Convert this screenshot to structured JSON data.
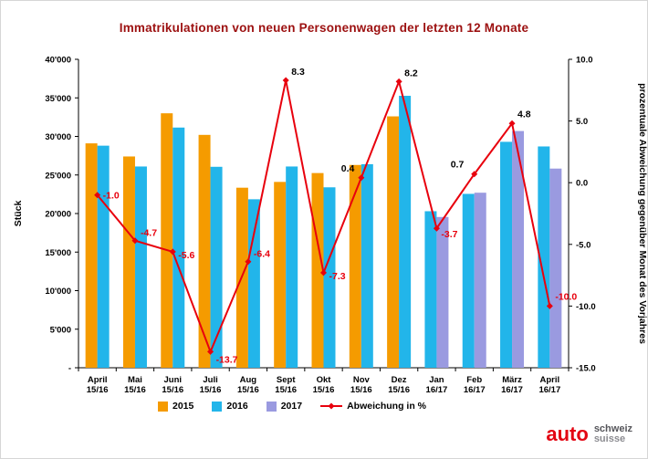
{
  "title": "Immatrikulationen von neuen Personenwagen der letzten 12 Monate",
  "y_left_label": "Stück",
  "y_right_label": "prozentuale Abweichung gegenüber Monat des Vorjahres",
  "legend": [
    "2015",
    "2016",
    "2017",
    "Abweichung in %"
  ],
  "logo": {
    "auto": "auto",
    "schweiz": "schweiz",
    "suisse": "suisse"
  },
  "colors": {
    "2015": "#f59b00",
    "2016": "#22b5ea",
    "2017": "#9a9ae0",
    "line": "#e8000d",
    "title": "#9c1010",
    "label_negative": "#e8000d",
    "label_positive": "#000000"
  },
  "chart_data": {
    "type": "bar+line",
    "categories": [
      {
        "month": "April",
        "year": "15/16"
      },
      {
        "month": "Mai",
        "year": "15/16"
      },
      {
        "month": "Juni",
        "year": "15/16"
      },
      {
        "month": "Juli",
        "year": "15/16"
      },
      {
        "month": "Aug",
        "year": "15/16"
      },
      {
        "month": "Sept",
        "year": "15/16"
      },
      {
        "month": "Okt",
        "year": "15/16"
      },
      {
        "month": "Nov",
        "year": "15/16"
      },
      {
        "month": "Dez",
        "year": "15/16"
      },
      {
        "month": "Jan",
        "year": "16/17"
      },
      {
        "month": "Feb",
        "year": "16/17"
      },
      {
        "month": "März",
        "year": "16/17"
      },
      {
        "month": "April",
        "year": "16/17"
      }
    ],
    "bar_series": [
      {
        "name": "2015",
        "color": "#f59b00",
        "values": [
          29100,
          27400,
          33000,
          30200,
          23350,
          24100,
          25250,
          26300,
          32600,
          null,
          null,
          null,
          null
        ]
      },
      {
        "name": "2016",
        "color": "#22b5ea",
        "values": [
          28800,
          26100,
          31150,
          26060,
          21850,
          26100,
          23400,
          26400,
          35270,
          20300,
          22550,
          29300,
          28700
        ]
      },
      {
        "name": "2017",
        "color": "#9a9ae0",
        "values": [
          null,
          null,
          null,
          null,
          null,
          null,
          null,
          null,
          null,
          19550,
          22700,
          30700,
          25830
        ]
      }
    ],
    "line_series": {
      "name": "Abweichung in %",
      "color": "#e8000d",
      "values": [
        -1.0,
        -4.7,
        -5.6,
        -13.7,
        -6.4,
        8.3,
        -7.3,
        0.4,
        8.2,
        -3.7,
        0.7,
        4.8,
        -10.0
      ]
    },
    "y_left": {
      "min": 0,
      "max": 40000,
      "step": 5000,
      "tick_labels": [
        "-",
        "5'000",
        "10'000",
        "15'000",
        "20'000",
        "25'000",
        "30'000",
        "35'000",
        "40'000"
      ]
    },
    "y_right": {
      "min": -15,
      "max": 10,
      "step": 5,
      "tick_labels": [
        "-15.0",
        "-10.0",
        "-5.0",
        "0.0",
        "5.0",
        "10.0"
      ]
    },
    "legend_position": "bottom",
    "grid": false
  }
}
